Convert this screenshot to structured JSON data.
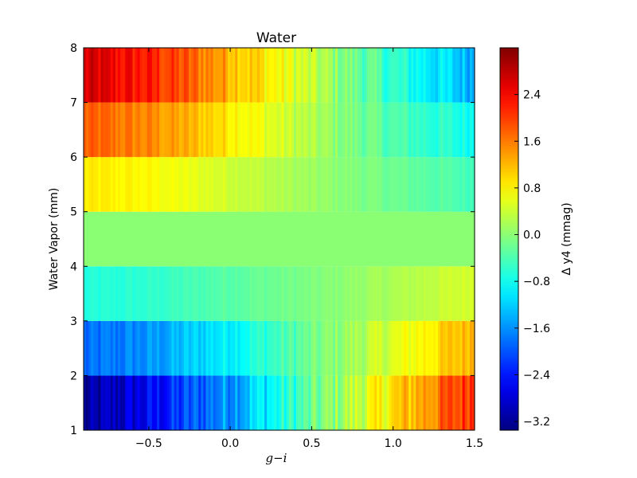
{
  "chart_data": {
    "type": "heatmap",
    "title": "Water",
    "xlabel": "g−i",
    "ylabel": "Water Vapor (mm)",
    "colorbar_label": "Δ y4 (mmag)",
    "xlim": [
      -0.9,
      1.5
    ],
    "ylim": [
      1,
      8
    ],
    "xticks": [
      -0.5,
      0.0,
      0.5,
      1.0,
      1.5
    ],
    "xtick_labels": [
      "−0.5",
      "0.0",
      "0.5",
      "1.0",
      "1.5"
    ],
    "yticks": [
      1,
      2,
      3,
      4,
      5,
      6,
      7,
      8
    ],
    "ytick_labels": [
      "1",
      "2",
      "3",
      "4",
      "5",
      "6",
      "7",
      "8"
    ],
    "colorbar_ticks": [
      -3.2,
      -2.4,
      -1.6,
      -0.8,
      0.0,
      0.8,
      1.6,
      2.4
    ],
    "colorbar_tick_labels": [
      "−3.2",
      "−2.4",
      "−1.6",
      "−0.8",
      "0.0",
      "0.8",
      "1.6",
      "2.4"
    ],
    "clim": [
      -3.35,
      3.2
    ],
    "colormap": "jet",
    "reference_row": [
      4,
      5
    ],
    "rows": [
      {
        "y": [
          1,
          2
        ],
        "x": [
          -0.9,
          -0.5,
          0.0,
          0.5,
          1.0,
          1.5
        ],
        "values": [
          -3.3,
          -2.6,
          -1.5,
          -0.3,
          0.9,
          2.2
        ]
      },
      {
        "y": [
          2,
          3
        ],
        "x": [
          -0.9,
          -0.5,
          0.0,
          0.5,
          1.0,
          1.5
        ],
        "values": [
          -1.9,
          -1.6,
          -0.9,
          -0.2,
          0.5,
          1.3
        ]
      },
      {
        "y": [
          3,
          4
        ],
        "x": [
          -0.9,
          -0.5,
          0.0,
          0.5,
          1.0,
          1.5
        ],
        "values": [
          -0.7,
          -0.6,
          -0.3,
          -0.1,
          0.2,
          0.5
        ]
      },
      {
        "y": [
          4,
          5
        ],
        "x": [
          -0.9,
          -0.5,
          0.0,
          0.5,
          1.0,
          1.5
        ],
        "values": [
          0.0,
          0.0,
          0.0,
          0.0,
          0.0,
          0.0
        ]
      },
      {
        "y": [
          5,
          6
        ],
        "x": [
          -0.9,
          -0.5,
          0.0,
          0.5,
          1.0,
          1.5
        ],
        "values": [
          0.85,
          0.75,
          0.45,
          0.1,
          -0.2,
          -0.45
        ]
      },
      {
        "y": [
          6,
          7
        ],
        "x": [
          -0.9,
          -0.5,
          0.0,
          0.5,
          1.0,
          1.5
        ],
        "values": [
          1.75,
          1.5,
          0.9,
          0.2,
          -0.4,
          -0.8
        ]
      },
      {
        "y": [
          7,
          8
        ],
        "x": [
          -0.9,
          -0.5,
          0.0,
          0.5,
          1.0,
          1.5
        ],
        "values": [
          2.6,
          2.2,
          1.3,
          0.3,
          -0.6,
          -1.4
        ]
      }
    ]
  }
}
